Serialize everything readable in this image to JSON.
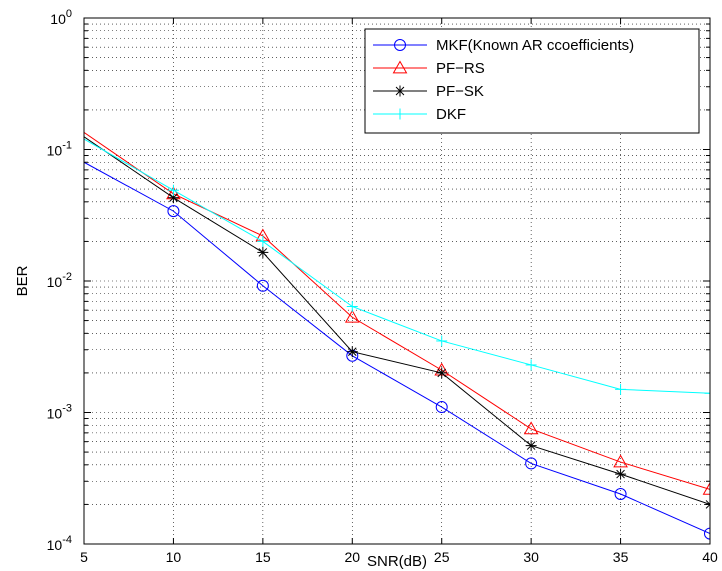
{
  "chart_data": {
    "type": "line",
    "title": "",
    "xlabel": "SNR(dB)",
    "ylabel": "BER",
    "xlim": [
      5,
      40
    ],
    "ylim": [
      0.0001,
      1
    ],
    "yscale": "log",
    "grid": true,
    "legend_position": "top-right",
    "x_ticks": [
      5,
      10,
      15,
      20,
      25,
      30,
      35,
      40
    ],
    "y_tick_labels": [
      {
        "base": "10",
        "exp": "0",
        "value": 1
      },
      {
        "base": "10",
        "exp": "-1",
        "value": 0.1
      },
      {
        "base": "10",
        "exp": "-2",
        "value": 0.01
      },
      {
        "base": "10",
        "exp": "-3",
        "value": 0.001
      },
      {
        "base": "10",
        "exp": "-4",
        "value": 0.0001
      }
    ],
    "x": [
      5,
      10,
      15,
      20,
      25,
      30,
      35,
      40
    ],
    "series": [
      {
        "name": "MKF(Known AR ccoefficients)",
        "color": "#0000ff",
        "marker": "circle",
        "values": [
          0.08,
          0.034,
          0.0092,
          0.0027,
          0.0011,
          0.00041,
          0.00024,
          0.00012
        ]
      },
      {
        "name": "PF−RS",
        "color": "#ff0000",
        "marker": "triangle",
        "values": [
          0.135,
          0.046,
          0.022,
          0.0053,
          0.0021,
          0.00075,
          0.00042,
          0.00026
        ]
      },
      {
        "name": "PF−SK",
        "color": "#000000",
        "marker": "star",
        "values": [
          0.125,
          0.043,
          0.0165,
          0.0029,
          0.002,
          0.00056,
          0.00034,
          0.0002
        ]
      },
      {
        "name": "DKF",
        "color": "#00ffff",
        "marker": "plus",
        "values": [
          0.12,
          0.049,
          0.02,
          0.0064,
          0.0035,
          0.0023,
          0.0015,
          0.0014
        ]
      }
    ]
  }
}
